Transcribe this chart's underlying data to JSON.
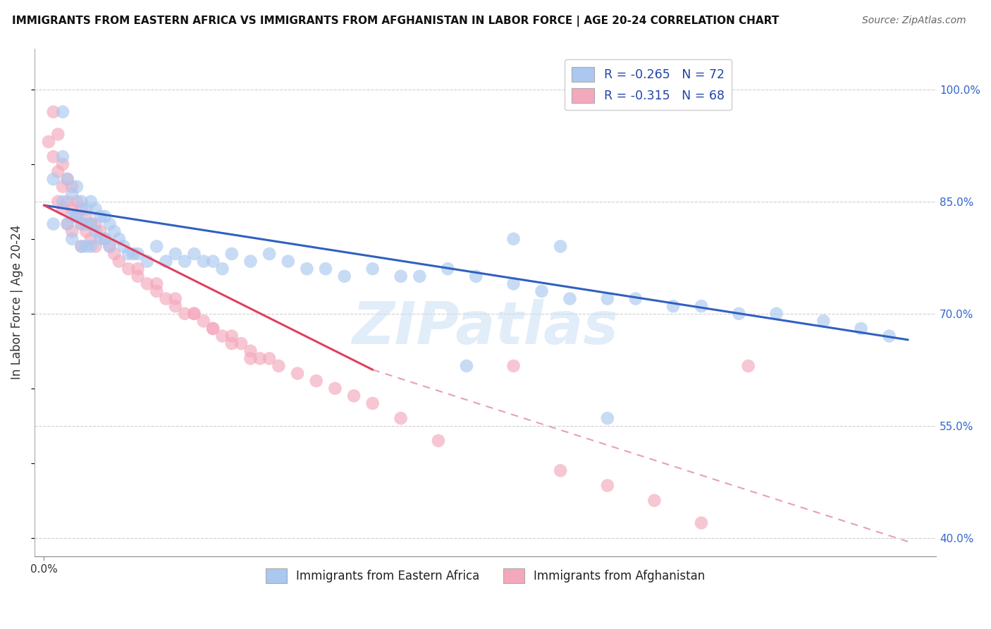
{
  "title": "IMMIGRANTS FROM EASTERN AFRICA VS IMMIGRANTS FROM AFGHANISTAN IN LABOR FORCE | AGE 20-24 CORRELATION CHART",
  "source": "Source: ZipAtlas.com",
  "ylabel": "In Labor Force | Age 20-24",
  "xlim": [
    -0.01,
    0.95
  ],
  "ylim": [
    0.375,
    1.055
  ],
  "ytick_labels_right": [
    "40.0%",
    "55.0%",
    "70.0%",
    "85.0%",
    "100.0%"
  ],
  "yticks_right": [
    0.4,
    0.55,
    0.7,
    0.85,
    1.0
  ],
  "blue_R": -0.265,
  "blue_N": 72,
  "pink_R": -0.315,
  "pink_N": 68,
  "blue_color": "#aac8f0",
  "pink_color": "#f4a8bc",
  "blue_line_color": "#3060c0",
  "pink_line_color": "#e04060",
  "pink_dash_color": "#e8a0b0",
  "watermark": "ZIPatlas",
  "legend_label_blue": "Immigrants from Eastern Africa",
  "legend_label_pink": "Immigrants from Afghanistan",
  "blue_line_x0": 0.0,
  "blue_line_y0": 0.845,
  "blue_line_x1": 0.92,
  "blue_line_y1": 0.665,
  "pink_line_x0": 0.0,
  "pink_line_y0": 0.845,
  "pink_line_x1_solid": 0.35,
  "pink_line_y1_solid": 0.625,
  "pink_line_x1_dash": 0.92,
  "pink_line_y1_dash": 0.395,
  "scatter_marker_size": 180,
  "scatter_alpha": 0.65,
  "blue_x": [
    0.01,
    0.01,
    0.02,
    0.02,
    0.02,
    0.025,
    0.025,
    0.03,
    0.03,
    0.03,
    0.035,
    0.035,
    0.04,
    0.04,
    0.04,
    0.045,
    0.045,
    0.045,
    0.05,
    0.05,
    0.05,
    0.055,
    0.055,
    0.06,
    0.06,
    0.065,
    0.065,
    0.07,
    0.07,
    0.075,
    0.08,
    0.085,
    0.09,
    0.095,
    0.1,
    0.11,
    0.12,
    0.13,
    0.14,
    0.15,
    0.16,
    0.17,
    0.18,
    0.19,
    0.2,
    0.22,
    0.24,
    0.26,
    0.28,
    0.3,
    0.32,
    0.35,
    0.38,
    0.4,
    0.43,
    0.46,
    0.5,
    0.53,
    0.56,
    0.6,
    0.63,
    0.67,
    0.7,
    0.74,
    0.78,
    0.83,
    0.87,
    0.9,
    0.5,
    0.55,
    0.6,
    0.45
  ],
  "blue_y": [
    0.88,
    0.82,
    0.97,
    0.91,
    0.85,
    0.88,
    0.82,
    0.86,
    0.83,
    0.8,
    0.87,
    0.83,
    0.85,
    0.82,
    0.79,
    0.84,
    0.82,
    0.79,
    0.85,
    0.82,
    0.79,
    0.84,
    0.81,
    0.83,
    0.8,
    0.83,
    0.8,
    0.82,
    0.79,
    0.81,
    0.8,
    0.79,
    0.78,
    0.78,
    0.78,
    0.77,
    0.79,
    0.77,
    0.78,
    0.77,
    0.78,
    0.77,
    0.77,
    0.76,
    0.78,
    0.77,
    0.78,
    0.77,
    0.76,
    0.76,
    0.75,
    0.76,
    0.75,
    0.75,
    0.76,
    0.75,
    0.74,
    0.73,
    0.72,
    0.72,
    0.72,
    0.71,
    0.71,
    0.7,
    0.7,
    0.69,
    0.68,
    0.67,
    0.8,
    0.79,
    0.56,
    0.63
  ],
  "pink_x": [
    0.005,
    0.01,
    0.01,
    0.015,
    0.015,
    0.015,
    0.02,
    0.02,
    0.02,
    0.025,
    0.025,
    0.025,
    0.03,
    0.03,
    0.03,
    0.035,
    0.035,
    0.04,
    0.04,
    0.04,
    0.045,
    0.045,
    0.05,
    0.05,
    0.055,
    0.055,
    0.06,
    0.065,
    0.07,
    0.075,
    0.08,
    0.09,
    0.1,
    0.11,
    0.12,
    0.13,
    0.14,
    0.15,
    0.16,
    0.17,
    0.18,
    0.19,
    0.2,
    0.21,
    0.22,
    0.23,
    0.24,
    0.25,
    0.27,
    0.29,
    0.31,
    0.33,
    0.35,
    0.38,
    0.42,
    0.5,
    0.55,
    0.6,
    0.65,
    0.7,
    0.75,
    0.1,
    0.12,
    0.14,
    0.16,
    0.18,
    0.2,
    0.22
  ],
  "pink_y": [
    0.93,
    0.97,
    0.91,
    0.94,
    0.89,
    0.85,
    0.9,
    0.87,
    0.84,
    0.88,
    0.85,
    0.82,
    0.87,
    0.84,
    0.81,
    0.85,
    0.83,
    0.84,
    0.82,
    0.79,
    0.83,
    0.81,
    0.82,
    0.8,
    0.82,
    0.79,
    0.81,
    0.8,
    0.79,
    0.78,
    0.77,
    0.76,
    0.75,
    0.74,
    0.73,
    0.72,
    0.71,
    0.7,
    0.7,
    0.69,
    0.68,
    0.67,
    0.67,
    0.66,
    0.65,
    0.64,
    0.64,
    0.63,
    0.62,
    0.61,
    0.6,
    0.59,
    0.58,
    0.56,
    0.53,
    0.63,
    0.49,
    0.47,
    0.45,
    0.42,
    0.63,
    0.76,
    0.74,
    0.72,
    0.7,
    0.68,
    0.66,
    0.64
  ]
}
